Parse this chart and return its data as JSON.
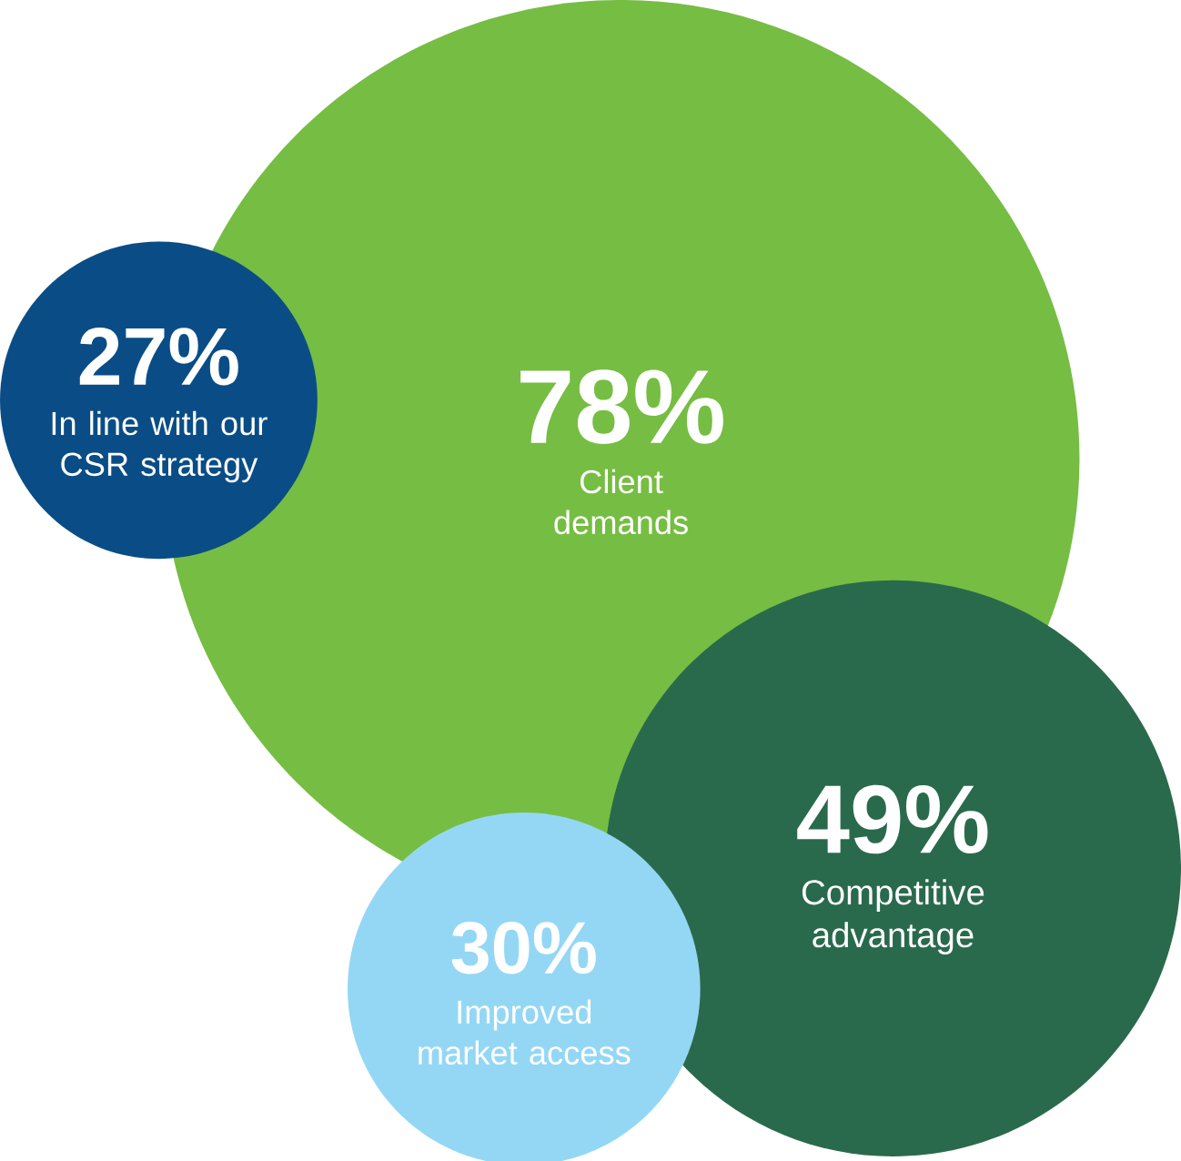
{
  "chart_data": {
    "type": "other",
    "categories": [
      "Client demands",
      "In line with our CSR strategy",
      "Competitive advantage",
      "Improved market access"
    ],
    "values": [
      78,
      27,
      49,
      30
    ],
    "value_labels": [
      "78%",
      "27%",
      "49%",
      "30%"
    ],
    "colors": [
      "#76bd43",
      "#0a4d86",
      "#2a6a4c",
      "#94d7f5"
    ]
  }
}
